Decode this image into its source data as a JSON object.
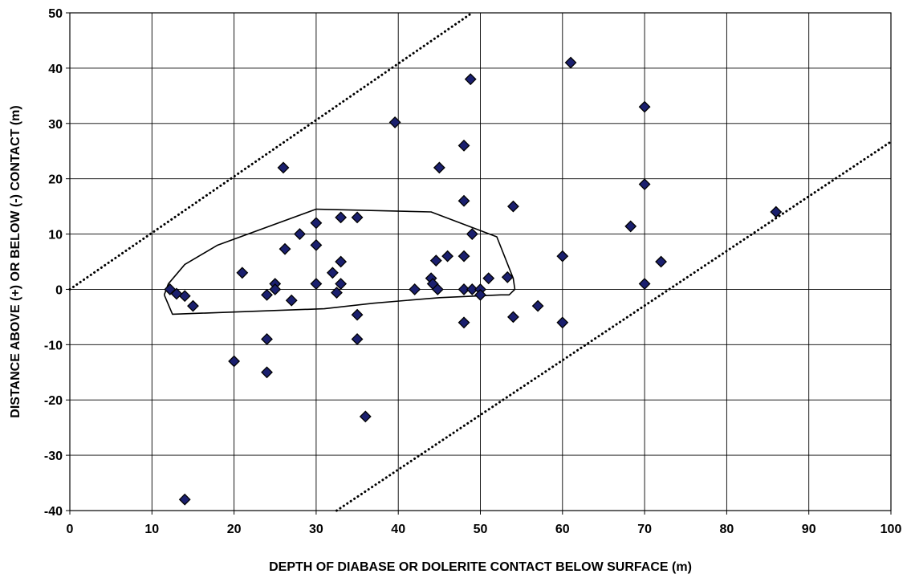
{
  "chart_data": {
    "type": "scatter",
    "title": "",
    "xlabel": "DEPTH OF DIABASE OR DOLERITE CONTACT BELOW SURFACE (m)",
    "ylabel": "DISTANCE ABOVE (+) OR BELOW (-) CONTACT (m)",
    "xlim": [
      0,
      100
    ],
    "ylim": [
      -40,
      50
    ],
    "x_ticks": [
      0,
      10,
      20,
      30,
      40,
      50,
      60,
      70,
      80,
      90,
      100
    ],
    "y_ticks": [
      -40,
      -30,
      -20,
      -10,
      0,
      10,
      20,
      30,
      40,
      50
    ],
    "x_tick_labels": [
      "0",
      "10",
      "20",
      "30",
      "40",
      "50",
      "60",
      "70",
      "80",
      "90",
      "100"
    ],
    "y_tick_labels": [
      "-40",
      "-30",
      "-20",
      "-10",
      "0",
      "10",
      "20",
      "30",
      "40",
      "50"
    ],
    "grid": true,
    "legend": "none",
    "marker": {
      "shape": "diamond",
      "fill": "#1a1f6e",
      "stroke": "#000000"
    },
    "points": [
      {
        "x": 12.2,
        "y": 0
      },
      {
        "x": 13,
        "y": -0.8
      },
      {
        "x": 14,
        "y": -1.2
      },
      {
        "x": 14,
        "y": -38
      },
      {
        "x": 15,
        "y": -3
      },
      {
        "x": 20,
        "y": -13
      },
      {
        "x": 21,
        "y": 3
      },
      {
        "x": 24,
        "y": -1
      },
      {
        "x": 24,
        "y": -9
      },
      {
        "x": 24,
        "y": -15
      },
      {
        "x": 25,
        "y": 1
      },
      {
        "x": 25,
        "y": 0
      },
      {
        "x": 26,
        "y": 22
      },
      {
        "x": 26.2,
        "y": 7.3
      },
      {
        "x": 27,
        "y": -2
      },
      {
        "x": 28,
        "y": 10
      },
      {
        "x": 30,
        "y": 12
      },
      {
        "x": 30,
        "y": 8
      },
      {
        "x": 30,
        "y": 1
      },
      {
        "x": 32,
        "y": 3
      },
      {
        "x": 32.5,
        "y": -0.6
      },
      {
        "x": 33,
        "y": 13
      },
      {
        "x": 33,
        "y": 5
      },
      {
        "x": 33,
        "y": 1
      },
      {
        "x": 35,
        "y": 13
      },
      {
        "x": 35,
        "y": -4.6
      },
      {
        "x": 35,
        "y": -9
      },
      {
        "x": 36,
        "y": -23
      },
      {
        "x": 39.6,
        "y": 30.2
      },
      {
        "x": 42,
        "y": 0
      },
      {
        "x": 44,
        "y": 2
      },
      {
        "x": 44.2,
        "y": 1
      },
      {
        "x": 44.6,
        "y": 5.2
      },
      {
        "x": 44.8,
        "y": 0
      },
      {
        "x": 45,
        "y": 22
      },
      {
        "x": 46,
        "y": 6
      },
      {
        "x": 48,
        "y": 26
      },
      {
        "x": 48,
        "y": 16
      },
      {
        "x": 48,
        "y": 6
      },
      {
        "x": 48,
        "y": 0
      },
      {
        "x": 48,
        "y": -6
      },
      {
        "x": 48.8,
        "y": 38
      },
      {
        "x": 49,
        "y": 10
      },
      {
        "x": 49,
        "y": 0
      },
      {
        "x": 50,
        "y": 0
      },
      {
        "x": 50,
        "y": -1
      },
      {
        "x": 51,
        "y": 2
      },
      {
        "x": 53.3,
        "y": 2.2
      },
      {
        "x": 54,
        "y": 15
      },
      {
        "x": 54,
        "y": -5
      },
      {
        "x": 57,
        "y": -3
      },
      {
        "x": 60,
        "y": 6
      },
      {
        "x": 60,
        "y": -6
      },
      {
        "x": 61,
        "y": 41
      },
      {
        "x": 68.3,
        "y": 11.4
      },
      {
        "x": 70,
        "y": 33
      },
      {
        "x": 70,
        "y": 19
      },
      {
        "x": 70,
        "y": 1
      },
      {
        "x": 72,
        "y": 5
      },
      {
        "x": 86,
        "y": 14
      }
    ],
    "reference_lines": [
      {
        "style": "dotted",
        "x": [
          0,
          49
        ],
        "y": [
          0,
          50
        ]
      },
      {
        "style": "dotted",
        "x": [
          32.5,
          100
        ],
        "y": [
          -40,
          26.7
        ]
      }
    ],
    "outline_polygon": {
      "style": "solid",
      "x": [
        11.5,
        12,
        14,
        18,
        30,
        44,
        52,
        54,
        54.2,
        53.5,
        52.5,
        45,
        37,
        31,
        12.5,
        11.5
      ],
      "y": [
        -1,
        1,
        4.5,
        8,
        14.5,
        14,
        9.5,
        2,
        0,
        -1,
        -1,
        -1.5,
        -2.5,
        -3.5,
        -4.5,
        -1
      ]
    }
  }
}
